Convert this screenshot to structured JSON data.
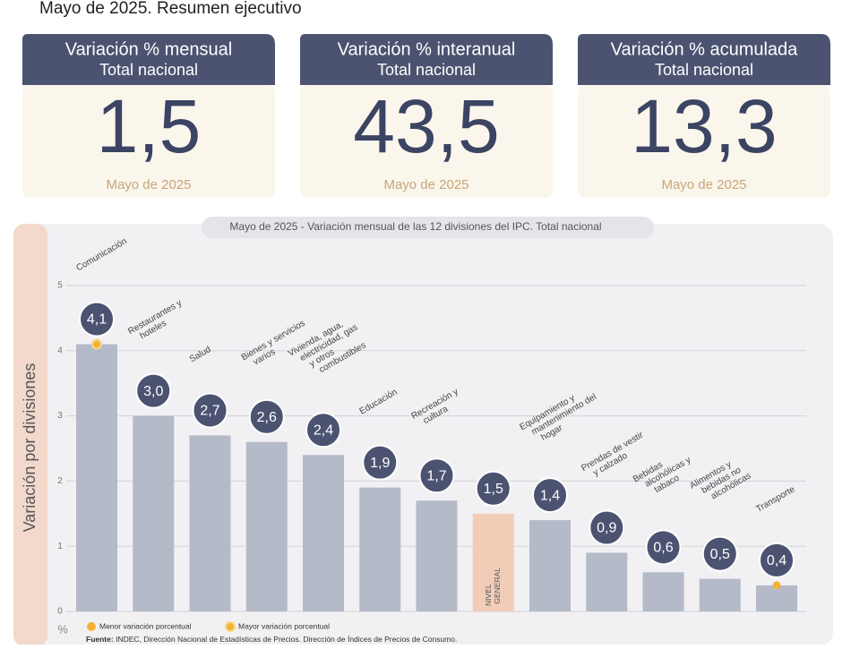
{
  "header": {
    "title": "Mayo de 2025. Resumen ejecutivo"
  },
  "cards": [
    {
      "title": "Variación % mensual",
      "subtitle": "Total nacional",
      "value": "1,5",
      "period": "Mayo de 2025"
    },
    {
      "title": "Variación % interanual",
      "subtitle": "Total nacional",
      "value": "43,5",
      "period": "Mayo de 2025"
    },
    {
      "title": "Variación % acumulada",
      "subtitle": "Total nacional",
      "value": "13,3",
      "period": "Mayo de 2025"
    }
  ],
  "chart_data": {
    "type": "bar",
    "title": "Mayo de 2025 - Variación mensual de las 12 divisiones del IPC. Total nacional",
    "y_label": "Variación por divisiones",
    "y_unit": "%",
    "categories": [
      "Comunicación",
      "Restaurantes y hoteles",
      "Salud",
      "Bienes y servicios varios",
      "Vivienda, agua, electricidad, gas y otros combustibles",
      "Educación",
      "Recreación y cultura",
      "NIVEL GENERAL",
      "Equipamiento y mantenimiento del hogar",
      "Prendas de vestir y calzado",
      "Bebidas alcohólicas y tabaco",
      "Alimentos y bebidas no alcohólicas",
      "Transporte"
    ],
    "values": [
      4.1,
      3.0,
      2.7,
      2.6,
      2.4,
      1.9,
      1.7,
      1.5,
      1.4,
      0.9,
      0.6,
      0.5,
      0.4
    ],
    "value_labels": [
      "4,1",
      "3,0",
      "2,7",
      "2,6",
      "2,4",
      "1,9",
      "1,7",
      "1,5",
      "1,4",
      "0,9",
      "0,6",
      "0,5",
      "0,4"
    ],
    "colors": [
      "#b5bac9",
      "#b5bac9",
      "#b5bac9",
      "#b5bac9",
      "#b5bac9",
      "#b5bac9",
      "#b5bac9",
      "#f1cdb8",
      "#b5bac9",
      "#b5bac9",
      "#b5bac9",
      "#b5bac9",
      "#b5bac9"
    ],
    "label_positions": [
      "above",
      "above",
      "above",
      "above",
      "above",
      "above",
      "above",
      "inside",
      "above",
      "above",
      "above",
      "above",
      "above"
    ],
    "ylim": [
      0,
      5
    ],
    "yticks": [
      0,
      1,
      2,
      3,
      4,
      5
    ],
    "grid": true,
    "legend": [
      {
        "name": "Menor variación porcentual",
        "color": "#f4b234"
      },
      {
        "name": "Mayor variación porcentual",
        "color": "#f4b234"
      }
    ],
    "source_label": "Fuente:",
    "source": "INDEC, Dirección Nacional de Estadísticas de Precios. Dirección de Índices de Precios de Consumo."
  }
}
